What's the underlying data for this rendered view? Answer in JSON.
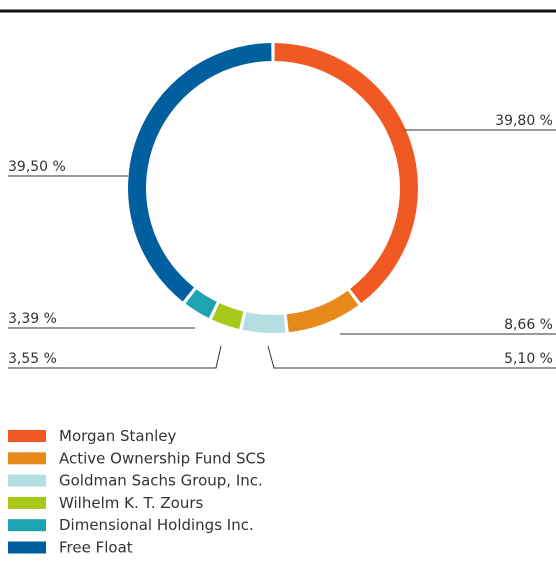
{
  "chart_data": {
    "type": "donut",
    "categories": [
      "Morgan Stanley",
      "Active Ownership Fund SCS",
      "Goldman Sachs Group, Inc.",
      "Wilhelm K. T. Zours",
      "Dimensional Holdings Inc.",
      "Free Float"
    ],
    "values": [
      39.8,
      8.66,
      5.1,
      3.55,
      3.39,
      39.5
    ],
    "value_labels": [
      "39,80 %",
      "8,66 %",
      "5,10 %",
      "3,55 %",
      "3,39 %",
      "39,50 %"
    ],
    "colors": [
      "#f05a22",
      "#e8891c",
      "#b3dfe2",
      "#a8c81a",
      "#1ea4b0",
      "#005f9e"
    ],
    "legend": "bottom-left"
  }
}
